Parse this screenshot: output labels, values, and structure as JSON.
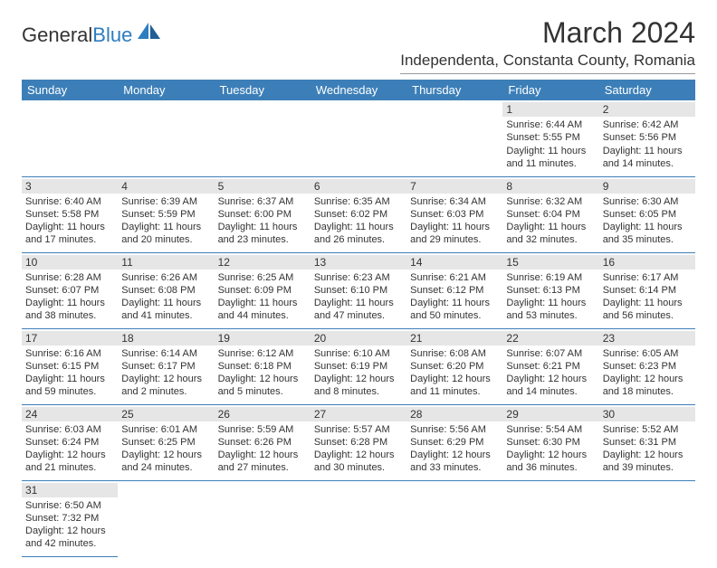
{
  "logo": {
    "general": "General",
    "blue": "Blue"
  },
  "title": "March 2024",
  "location": "Independenta, Constanta County, Romania",
  "day_headers": [
    "Sunday",
    "Monday",
    "Tuesday",
    "Wednesday",
    "Thursday",
    "Friday",
    "Saturday"
  ],
  "colors": {
    "header_bg": "#3c7fb8",
    "header_fg": "#ffffff",
    "daynum_bg": "#e6e6e6",
    "border": "#3c7fb8",
    "text": "#333333",
    "logo_accent": "#2d7dc0"
  },
  "weeks": [
    [
      {
        "day": "",
        "sunrise": "",
        "sunset": "",
        "daylight1": "",
        "daylight2": ""
      },
      {
        "day": "",
        "sunrise": "",
        "sunset": "",
        "daylight1": "",
        "daylight2": ""
      },
      {
        "day": "",
        "sunrise": "",
        "sunset": "",
        "daylight1": "",
        "daylight2": ""
      },
      {
        "day": "",
        "sunrise": "",
        "sunset": "",
        "daylight1": "",
        "daylight2": ""
      },
      {
        "day": "",
        "sunrise": "",
        "sunset": "",
        "daylight1": "",
        "daylight2": ""
      },
      {
        "day": "1",
        "sunrise": "Sunrise: 6:44 AM",
        "sunset": "Sunset: 5:55 PM",
        "daylight1": "Daylight: 11 hours",
        "daylight2": "and 11 minutes."
      },
      {
        "day": "2",
        "sunrise": "Sunrise: 6:42 AM",
        "sunset": "Sunset: 5:56 PM",
        "daylight1": "Daylight: 11 hours",
        "daylight2": "and 14 minutes."
      }
    ],
    [
      {
        "day": "3",
        "sunrise": "Sunrise: 6:40 AM",
        "sunset": "Sunset: 5:58 PM",
        "daylight1": "Daylight: 11 hours",
        "daylight2": "and 17 minutes."
      },
      {
        "day": "4",
        "sunrise": "Sunrise: 6:39 AM",
        "sunset": "Sunset: 5:59 PM",
        "daylight1": "Daylight: 11 hours",
        "daylight2": "and 20 minutes."
      },
      {
        "day": "5",
        "sunrise": "Sunrise: 6:37 AM",
        "sunset": "Sunset: 6:00 PM",
        "daylight1": "Daylight: 11 hours",
        "daylight2": "and 23 minutes."
      },
      {
        "day": "6",
        "sunrise": "Sunrise: 6:35 AM",
        "sunset": "Sunset: 6:02 PM",
        "daylight1": "Daylight: 11 hours",
        "daylight2": "and 26 minutes."
      },
      {
        "day": "7",
        "sunrise": "Sunrise: 6:34 AM",
        "sunset": "Sunset: 6:03 PM",
        "daylight1": "Daylight: 11 hours",
        "daylight2": "and 29 minutes."
      },
      {
        "day": "8",
        "sunrise": "Sunrise: 6:32 AM",
        "sunset": "Sunset: 6:04 PM",
        "daylight1": "Daylight: 11 hours",
        "daylight2": "and 32 minutes."
      },
      {
        "day": "9",
        "sunrise": "Sunrise: 6:30 AM",
        "sunset": "Sunset: 6:05 PM",
        "daylight1": "Daylight: 11 hours",
        "daylight2": "and 35 minutes."
      }
    ],
    [
      {
        "day": "10",
        "sunrise": "Sunrise: 6:28 AM",
        "sunset": "Sunset: 6:07 PM",
        "daylight1": "Daylight: 11 hours",
        "daylight2": "and 38 minutes."
      },
      {
        "day": "11",
        "sunrise": "Sunrise: 6:26 AM",
        "sunset": "Sunset: 6:08 PM",
        "daylight1": "Daylight: 11 hours",
        "daylight2": "and 41 minutes."
      },
      {
        "day": "12",
        "sunrise": "Sunrise: 6:25 AM",
        "sunset": "Sunset: 6:09 PM",
        "daylight1": "Daylight: 11 hours",
        "daylight2": "and 44 minutes."
      },
      {
        "day": "13",
        "sunrise": "Sunrise: 6:23 AM",
        "sunset": "Sunset: 6:10 PM",
        "daylight1": "Daylight: 11 hours",
        "daylight2": "and 47 minutes."
      },
      {
        "day": "14",
        "sunrise": "Sunrise: 6:21 AM",
        "sunset": "Sunset: 6:12 PM",
        "daylight1": "Daylight: 11 hours",
        "daylight2": "and 50 minutes."
      },
      {
        "day": "15",
        "sunrise": "Sunrise: 6:19 AM",
        "sunset": "Sunset: 6:13 PM",
        "daylight1": "Daylight: 11 hours",
        "daylight2": "and 53 minutes."
      },
      {
        "day": "16",
        "sunrise": "Sunrise: 6:17 AM",
        "sunset": "Sunset: 6:14 PM",
        "daylight1": "Daylight: 11 hours",
        "daylight2": "and 56 minutes."
      }
    ],
    [
      {
        "day": "17",
        "sunrise": "Sunrise: 6:16 AM",
        "sunset": "Sunset: 6:15 PM",
        "daylight1": "Daylight: 11 hours",
        "daylight2": "and 59 minutes."
      },
      {
        "day": "18",
        "sunrise": "Sunrise: 6:14 AM",
        "sunset": "Sunset: 6:17 PM",
        "daylight1": "Daylight: 12 hours",
        "daylight2": "and 2 minutes."
      },
      {
        "day": "19",
        "sunrise": "Sunrise: 6:12 AM",
        "sunset": "Sunset: 6:18 PM",
        "daylight1": "Daylight: 12 hours",
        "daylight2": "and 5 minutes."
      },
      {
        "day": "20",
        "sunrise": "Sunrise: 6:10 AM",
        "sunset": "Sunset: 6:19 PM",
        "daylight1": "Daylight: 12 hours",
        "daylight2": "and 8 minutes."
      },
      {
        "day": "21",
        "sunrise": "Sunrise: 6:08 AM",
        "sunset": "Sunset: 6:20 PM",
        "daylight1": "Daylight: 12 hours",
        "daylight2": "and 11 minutes."
      },
      {
        "day": "22",
        "sunrise": "Sunrise: 6:07 AM",
        "sunset": "Sunset: 6:21 PM",
        "daylight1": "Daylight: 12 hours",
        "daylight2": "and 14 minutes."
      },
      {
        "day": "23",
        "sunrise": "Sunrise: 6:05 AM",
        "sunset": "Sunset: 6:23 PM",
        "daylight1": "Daylight: 12 hours",
        "daylight2": "and 18 minutes."
      }
    ],
    [
      {
        "day": "24",
        "sunrise": "Sunrise: 6:03 AM",
        "sunset": "Sunset: 6:24 PM",
        "daylight1": "Daylight: 12 hours",
        "daylight2": "and 21 minutes."
      },
      {
        "day": "25",
        "sunrise": "Sunrise: 6:01 AM",
        "sunset": "Sunset: 6:25 PM",
        "daylight1": "Daylight: 12 hours",
        "daylight2": "and 24 minutes."
      },
      {
        "day": "26",
        "sunrise": "Sunrise: 5:59 AM",
        "sunset": "Sunset: 6:26 PM",
        "daylight1": "Daylight: 12 hours",
        "daylight2": "and 27 minutes."
      },
      {
        "day": "27",
        "sunrise": "Sunrise: 5:57 AM",
        "sunset": "Sunset: 6:28 PM",
        "daylight1": "Daylight: 12 hours",
        "daylight2": "and 30 minutes."
      },
      {
        "day": "28",
        "sunrise": "Sunrise: 5:56 AM",
        "sunset": "Sunset: 6:29 PM",
        "daylight1": "Daylight: 12 hours",
        "daylight2": "and 33 minutes."
      },
      {
        "day": "29",
        "sunrise": "Sunrise: 5:54 AM",
        "sunset": "Sunset: 6:30 PM",
        "daylight1": "Daylight: 12 hours",
        "daylight2": "and 36 minutes."
      },
      {
        "day": "30",
        "sunrise": "Sunrise: 5:52 AM",
        "sunset": "Sunset: 6:31 PM",
        "daylight1": "Daylight: 12 hours",
        "daylight2": "and 39 minutes."
      }
    ],
    [
      {
        "day": "31",
        "sunrise": "Sunrise: 6:50 AM",
        "sunset": "Sunset: 7:32 PM",
        "daylight1": "Daylight: 12 hours",
        "daylight2": "and 42 minutes."
      },
      {
        "day": "",
        "sunrise": "",
        "sunset": "",
        "daylight1": "",
        "daylight2": ""
      },
      {
        "day": "",
        "sunrise": "",
        "sunset": "",
        "daylight1": "",
        "daylight2": ""
      },
      {
        "day": "",
        "sunrise": "",
        "sunset": "",
        "daylight1": "",
        "daylight2": ""
      },
      {
        "day": "",
        "sunrise": "",
        "sunset": "",
        "daylight1": "",
        "daylight2": ""
      },
      {
        "day": "",
        "sunrise": "",
        "sunset": "",
        "daylight1": "",
        "daylight2": ""
      },
      {
        "day": "",
        "sunrise": "",
        "sunset": "",
        "daylight1": "",
        "daylight2": ""
      }
    ]
  ]
}
